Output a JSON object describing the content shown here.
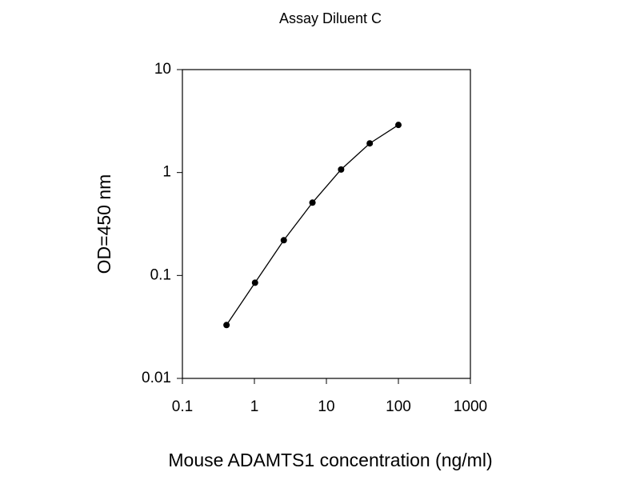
{
  "chart_data": {
    "type": "line",
    "title": "Assay Diluent C",
    "x_label": "Mouse ADAMTS1 concentration (ng/ml)",
    "y_label": "OD=450 nm",
    "x": [
      0.41,
      1.02,
      2.56,
      6.4,
      16,
      40,
      100
    ],
    "values": [
      0.033,
      0.085,
      0.22,
      0.51,
      1.07,
      1.92,
      2.9
    ],
    "color": "#000000",
    "marker": "circle",
    "x_scale": "log",
    "y_scale": "log",
    "xlim": [
      0.1,
      1000
    ],
    "xticks": [
      0.1,
      1,
      10,
      100,
      1000
    ],
    "ylim": [
      0.01,
      10
    ],
    "yticks": [
      0.01,
      0.1,
      1,
      10
    ]
  }
}
